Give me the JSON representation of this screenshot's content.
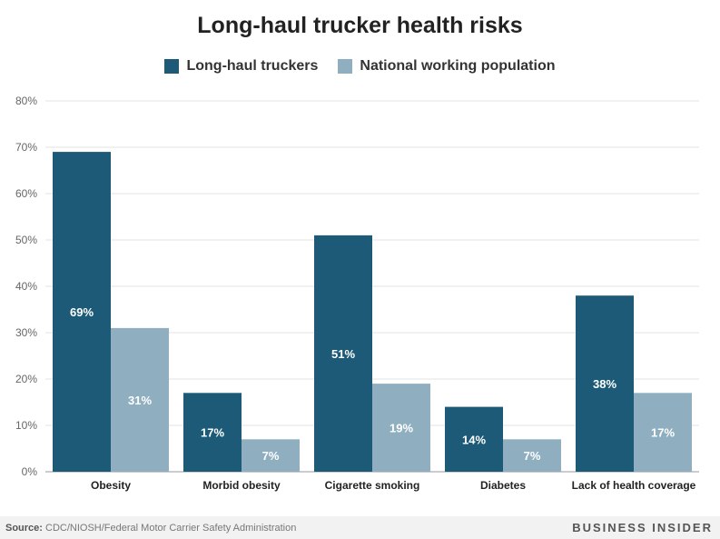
{
  "chart_data": {
    "type": "bar",
    "title": "Long-haul trucker health risks",
    "categories": [
      "Obesity",
      "Morbid obesity",
      "Cigarette smoking",
      "Diabetes",
      "Lack of health coverage"
    ],
    "series": [
      {
        "name": "Long-haul truckers",
        "values": [
          69,
          17,
          51,
          14,
          38
        ],
        "labels": [
          "69%",
          "17%",
          "51%",
          "14%",
          "38%"
        ],
        "color": "#1c5a78"
      },
      {
        "name": "National working population",
        "values": [
          31,
          7,
          19,
          7,
          17
        ],
        "labels": [
          "31%",
          "7%",
          "19%",
          "7%",
          "17%"
        ],
        "color": "#8fafc1"
      }
    ],
    "ylim": [
      0,
      80
    ],
    "yticks": [
      "0%",
      "10%",
      "20%",
      "30%",
      "40%",
      "50%",
      "60%",
      "70%",
      "80%"
    ],
    "grid": true,
    "legend": "top-center"
  },
  "footer": {
    "source_label": "Source:",
    "source_text": "CDC/NIOSH/Federal Motor Carrier Safety Administration",
    "brand": "BUSINESS INSIDER"
  }
}
